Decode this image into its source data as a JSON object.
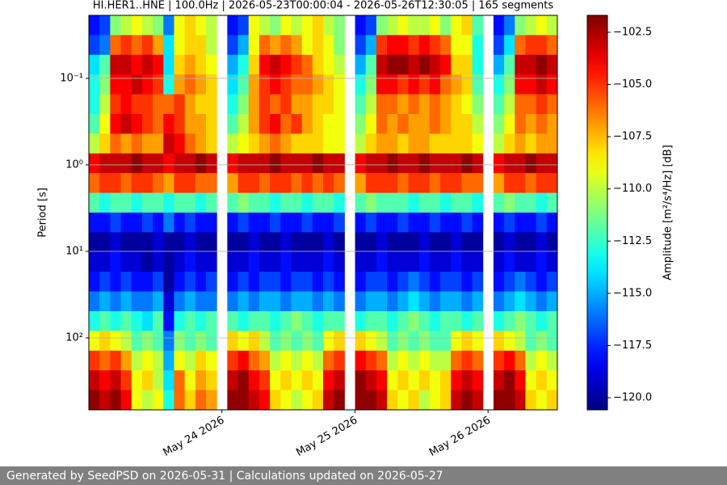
{
  "chart_data": {
    "type": "spectrogram",
    "title": "HI.HER1..HNE | 100.0Hz | 2026-05-23T00:00:04 - 2026-05-26T12:30:05 | 165 segments",
    "ylabel": "Period [s]",
    "colorbar_label": "Amplitude [m²/s⁴/Hz] [dB]",
    "colormap": "jet",
    "ylog": true,
    "yinvert": true,
    "grid": true,
    "xlim": [
      "2026-05-23T00:00:04",
      "2026-05-26T12:30:05"
    ],
    "xticks": [
      {
        "value": "2026-05-24T00:00:00",
        "label": "May 24 2026"
      },
      {
        "value": "2026-05-25T00:00:00",
        "label": "May 25 2026"
      },
      {
        "value": "2026-05-26T00:00:00",
        "label": "May 26 2026"
      }
    ],
    "ylim": [
      0.0187,
      679
    ],
    "yticks": [
      {
        "value": 0.1,
        "label": "10⁻¹"
      },
      {
        "value": 1,
        "label": "10⁰"
      },
      {
        "value": 10,
        "label": "10¹"
      },
      {
        "value": 100,
        "label": "10²"
      }
    ],
    "clim": [
      -120.58,
      -101.69
    ],
    "cticks": [
      {
        "value": -102.5,
        "label": "−102.5"
      },
      {
        "value": -105,
        "label": "−105.0"
      },
      {
        "value": -107.5,
        "label": "−107.5"
      },
      {
        "value": -110,
        "label": "−110.0"
      },
      {
        "value": -112.5,
        "label": "−112.5"
      },
      {
        "value": -115,
        "label": "−115.0"
      },
      {
        "value": -117.5,
        "label": "−117.5"
      },
      {
        "value": -120,
        "label": "−120.0"
      }
    ],
    "z": [
      [
        -118,
        -117,
        -111,
        -110,
        -109,
        -110,
        -111,
        -116,
        -109,
        -108,
        -109,
        -110,
        null,
        -118,
        -117,
        -109,
        -110,
        -111,
        -109,
        -110,
        -109,
        -108,
        -110,
        -111,
        null,
        -118,
        -117,
        -111,
        -110,
        -109,
        -110,
        -110,
        -109,
        -111,
        -109,
        -108,
        -112,
        null,
        -118,
        -116,
        -111,
        -110,
        -109,
        -110
      ],
      [
        -117,
        -116,
        -106,
        -105,
        -106,
        -105,
        -107,
        -114,
        -109,
        -108,
        -108,
        -110,
        null,
        -117,
        -115,
        -109,
        -106,
        -107,
        -106,
        -107,
        -109,
        -108,
        -109,
        -111,
        null,
        -117,
        -115,
        -105,
        -104,
        -104,
        -105,
        -104,
        -105,
        -106,
        -109,
        -109,
        -113,
        null,
        -117,
        -114,
        -106,
        -105,
        -105,
        -106
      ],
      [
        -114,
        -112,
        -103,
        -103,
        -104,
        -103,
        -104,
        -114,
        -108,
        -107,
        -108,
        -109,
        null,
        -115,
        -113,
        -108,
        -104,
        -103,
        -104,
        -105,
        -106,
        -108,
        -109,
        -110,
        null,
        -115,
        -112,
        -103,
        -102,
        -102,
        -103,
        -102,
        -103,
        -104,
        -108,
        -108,
        -113,
        null,
        -115,
        -112,
        -103,
        -103,
        -102,
        -103
      ],
      [
        -113,
        -111,
        -104,
        -104,
        -103,
        -104,
        -105,
        -113,
        -107,
        -106,
        -107,
        -108,
        null,
        -114,
        -112,
        -107,
        -105,
        -104,
        -105,
        -106,
        -106,
        -107,
        -108,
        -109,
        null,
        -113,
        -111,
        -104,
        -104,
        -105,
        -104,
        -105,
        -104,
        -106,
        -107,
        -108,
        -112,
        null,
        -113,
        -111,
        -104,
        -104,
        -103,
        -104
      ],
      [
        -113,
        -110,
        -105,
        -104,
        -105,
        -105,
        -106,
        -106,
        -105,
        -107,
        -108,
        -108,
        null,
        -113,
        -111,
        -107,
        -105,
        -106,
        -105,
        -107,
        -107,
        -108,
        -108,
        -109,
        null,
        -112,
        -110,
        -106,
        -106,
        -107,
        -106,
        -107,
        -106,
        -107,
        -108,
        -109,
        -111,
        null,
        -112,
        -110,
        -106,
        -106,
        -105,
        -106
      ],
      [
        -112,
        -109,
        -104,
        -103,
        -104,
        -105,
        -106,
        -104,
        -105,
        -107,
        -107,
        -108,
        null,
        -112,
        -110,
        -107,
        -105,
        -104,
        -106,
        -105,
        -107,
        -108,
        -109,
        -109,
        null,
        -111,
        -109,
        -106,
        -107,
        -106,
        -107,
        -107,
        -106,
        -107,
        -108,
        -108,
        -110,
        null,
        -111,
        -109,
        -106,
        -107,
        -106,
        -107
      ],
      [
        -110,
        -108,
        -106,
        -107,
        -106,
        -107,
        -107,
        -103,
        -104,
        -106,
        -107,
        -108,
        null,
        -110,
        -109,
        -108,
        -107,
        -106,
        -107,
        -108,
        -108,
        -108,
        -109,
        -109,
        null,
        -110,
        -108,
        -107,
        -107,
        -108,
        -107,
        -107,
        -108,
        -108,
        -108,
        -108,
        -109,
        null,
        -110,
        -108,
        -107,
        -108,
        -107,
        -107
      ],
      [
        -104,
        -103,
        -103,
        -103,
        -102,
        -103,
        -103,
        -104,
        -103,
        -103,
        -102,
        -103,
        null,
        -104,
        -103,
        -103,
        -103,
        -102,
        -103,
        -103,
        -103,
        -102,
        -103,
        -103,
        null,
        -104,
        -103,
        -103,
        -102,
        -103,
        -103,
        -102,
        -103,
        -103,
        -103,
        -102,
        -103,
        null,
        -104,
        -103,
        -103,
        -102,
        -103,
        -103
      ],
      [
        -106,
        -105,
        -105,
        -106,
        -105,
        -105,
        -106,
        -107,
        -105,
        -105,
        -106,
        -106,
        null,
        -107,
        -105,
        -105,
        -106,
        -105,
        -105,
        -106,
        -105,
        -106,
        -105,
        -106,
        null,
        -107,
        -105,
        -105,
        -105,
        -106,
        -105,
        -105,
        -106,
        -105,
        -105,
        -106,
        -106,
        null,
        -107,
        -105,
        -105,
        -106,
        -105,
        -105
      ],
      [
        -112,
        -113,
        -112,
        -112,
        -113,
        -112,
        -112,
        -113,
        -112,
        -112,
        -113,
        -112,
        null,
        -112,
        -111,
        -112,
        -112,
        -113,
        -112,
        -112,
        -113,
        -112,
        -112,
        -113,
        null,
        -112,
        -111,
        -112,
        -112,
        -112,
        -113,
        -112,
        -112,
        -113,
        -112,
        -112,
        -113,
        null,
        -112,
        -111,
        -112,
        -112,
        -113,
        -112
      ],
      [
        -118,
        -118,
        -117,
        -118,
        -118,
        -117,
        -118,
        -116,
        -118,
        -117,
        -118,
        -118,
        null,
        -118,
        -117,
        -118,
        -118,
        -117,
        -118,
        -118,
        -117,
        -118,
        -118,
        -117,
        null,
        -118,
        -117,
        -118,
        -118,
        -117,
        -118,
        -118,
        -117,
        -118,
        -118,
        -117,
        -118,
        null,
        -118,
        -117,
        -118,
        -118,
        -117,
        -118
      ],
      [
        -120,
        -120,
        -119,
        -120,
        -120,
        -120,
        -119,
        -120,
        -120,
        -119,
        -120,
        -120,
        null,
        -120,
        -120,
        -119,
        -120,
        -120,
        -119,
        -120,
        -120,
        -120,
        -119,
        -120,
        null,
        -120,
        -120,
        -119,
        -120,
        -120,
        -120,
        -119,
        -120,
        -120,
        -119,
        -120,
        -120,
        null,
        -120,
        -119,
        -120,
        -120,
        -119,
        -120
      ],
      [
        -119,
        -119,
        -118,
        -119,
        -119,
        -120,
        -119,
        -120,
        -119,
        -118,
        -119,
        -119,
        null,
        -119,
        -119,
        -118,
        -119,
        -119,
        -118,
        -119,
        -119,
        -119,
        -118,
        -119,
        null,
        -119,
        -119,
        -118,
        -119,
        -119,
        -119,
        -118,
        -119,
        -119,
        -118,
        -119,
        -119,
        null,
        -119,
        -118,
        -119,
        -119,
        -118,
        -119
      ],
      [
        -118,
        -117,
        -118,
        -117,
        -118,
        -118,
        -117,
        -120,
        -118,
        -117,
        -118,
        -117,
        null,
        -118,
        -117,
        -118,
        -117,
        -117,
        -118,
        -117,
        -117,
        -118,
        -117,
        -118,
        null,
        -118,
        -117,
        -117,
        -118,
        -117,
        -116,
        -117,
        -118,
        -117,
        -117,
        -118,
        -117,
        null,
        -118,
        -117,
        -116,
        -117,
        -118,
        -117
      ],
      [
        -116,
        -115,
        -116,
        -115,
        -116,
        -116,
        -115,
        -119,
        -116,
        -115,
        -116,
        -116,
        null,
        -116,
        -115,
        -116,
        -115,
        -115,
        -116,
        -115,
        -115,
        -116,
        -115,
        -116,
        null,
        -116,
        -115,
        -115,
        -116,
        -115,
        -114,
        -115,
        -116,
        -115,
        -115,
        -116,
        -115,
        null,
        -116,
        -115,
        -114,
        -115,
        -116,
        -115
      ],
      [
        -113,
        -112,
        -113,
        -112,
        -113,
        -114,
        -112,
        -118,
        -113,
        -112,
        -113,
        -112,
        null,
        -112,
        -113,
        -112,
        -112,
        -113,
        -112,
        -111,
        -112,
        -113,
        -112,
        -112,
        null,
        -113,
        -112,
        -112,
        -113,
        -112,
        -111,
        -112,
        -113,
        -112,
        -112,
        -113,
        -112,
        null,
        -113,
        -112,
        -111,
        -112,
        -113,
        -112
      ],
      [
        -109,
        -108,
        -109,
        -110,
        -112,
        -111,
        -112,
        -116,
        -111,
        -112,
        -111,
        -112,
        null,
        -108,
        -109,
        -108,
        -110,
        -112,
        -111,
        -112,
        -111,
        -112,
        -109,
        -108,
        null,
        -108,
        -109,
        -110,
        -112,
        -111,
        -112,
        -111,
        -112,
        -112,
        -109,
        -108,
        -109,
        null,
        -108,
        -109,
        -110,
        -112,
        -111,
        -112
      ],
      [
        -105,
        -106,
        -105,
        -107,
        -110,
        -109,
        -110,
        -115,
        -109,
        -110,
        -108,
        -109,
        null,
        -105,
        -104,
        -106,
        -107,
        -110,
        -109,
        -110,
        -109,
        -110,
        -106,
        -105,
        null,
        -104,
        -105,
        -106,
        -110,
        -109,
        -110,
        -109,
        -110,
        -110,
        -106,
        -105,
        -106,
        null,
        -105,
        -104,
        -106,
        -110,
        -109,
        -110
      ],
      [
        -103,
        -104,
        -103,
        -105,
        -109,
        -108,
        -110,
        -114,
        -106,
        -109,
        -107,
        -108,
        null,
        -103,
        -102,
        -104,
        -105,
        -109,
        -108,
        -109,
        -108,
        -109,
        -104,
        -103,
        null,
        -102,
        -103,
        -104,
        -109,
        -108,
        -109,
        -108,
        -109,
        -108,
        -104,
        -103,
        -104,
        null,
        -103,
        -102,
        -104,
        -109,
        -108,
        -109
      ],
      [
        -102,
        -103,
        -102,
        -104,
        -109,
        -110,
        -109,
        -113,
        -106,
        -108,
        -106,
        -107,
        null,
        -102,
        -102,
        -103,
        -104,
        -108,
        -109,
        -110,
        -109,
        -108,
        -103,
        -102,
        null,
        -102,
        -102,
        -103,
        -108,
        -109,
        -108,
        -110,
        -109,
        -108,
        -103,
        -102,
        -103,
        null,
        -102,
        -102,
        -103,
        -108,
        -109,
        -108
      ]
    ]
  },
  "footer": "Generated by SeedPSD on 2026-05-31 | Calculations updated on 2026-05-27"
}
